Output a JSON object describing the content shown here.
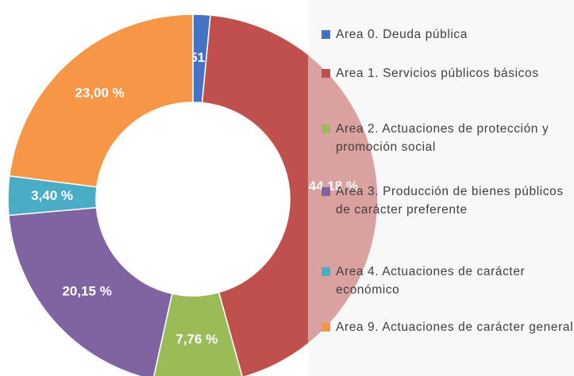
{
  "chart_data": {
    "type": "donut",
    "categories": [
      "Area 0. Deuda pública",
      "Area 1. Servicios públicos básicos",
      "Area 2. Actuaciones de protección y promoción social",
      "Area 3. Producción de bienes públicos de carácter preferente",
      "Area 4. Actuaciones de carácter económico",
      "Area 9. Actuaciones de carácter general"
    ],
    "values": [
      1.51,
      44.18,
      7.76,
      20.15,
      3.4,
      23.0
    ],
    "value_labels": [
      "1,51 %",
      "44,18 %",
      "7,76 %",
      "20,15 %",
      "3,40 %",
      "23,00 %"
    ],
    "colors": [
      "#4472c4",
      "#c0504d",
      "#9bbb59",
      "#8064a2",
      "#4bacc6",
      "#f79646"
    ],
    "legend": "right"
  }
}
